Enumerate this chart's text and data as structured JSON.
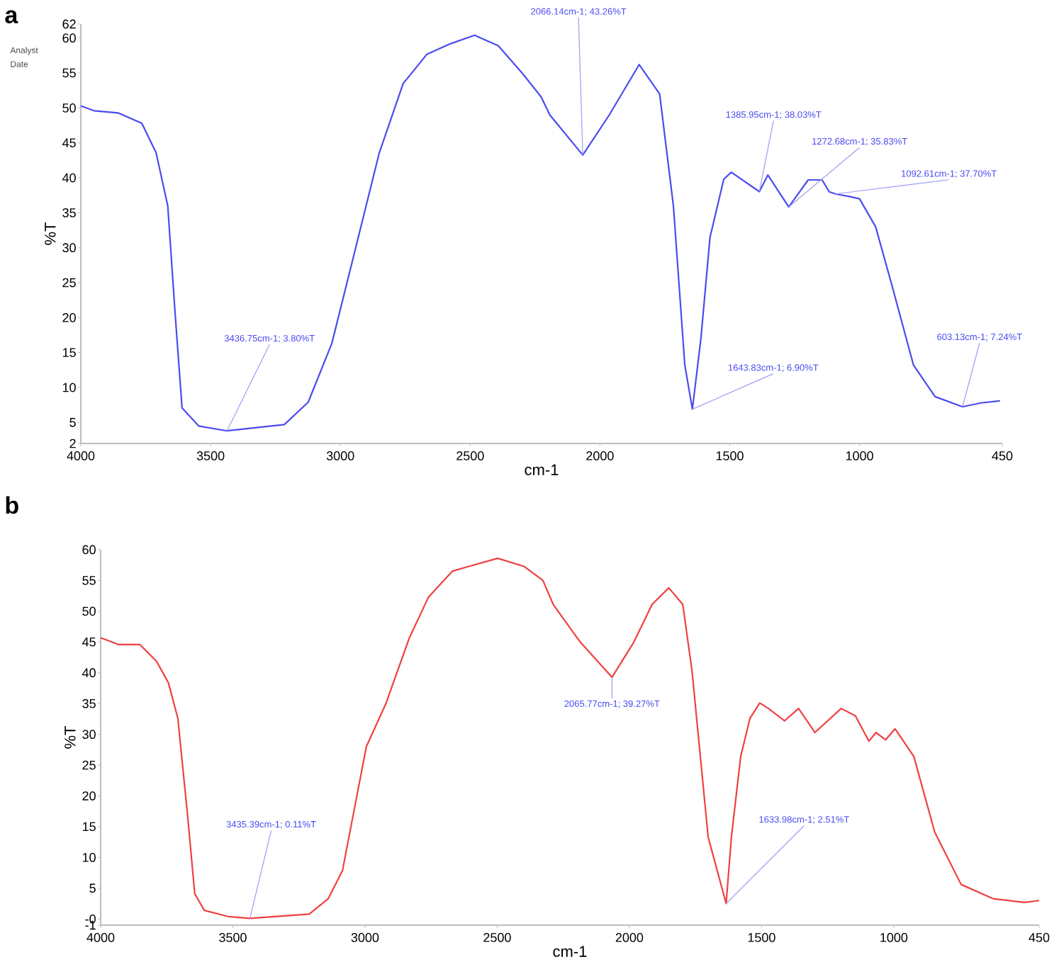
{
  "chart_data": [
    {
      "type": "line",
      "title": "a",
      "xlabel": "cm-1",
      "ylabel": "%T",
      "xlim": [
        4000,
        450
      ],
      "ylim": [
        2,
        62
      ],
      "xticks": [
        4000,
        3500,
        3000,
        2500,
        2000,
        1500,
        1000,
        450
      ],
      "yticks": [
        2,
        5,
        10,
        15,
        20,
        25,
        30,
        35,
        40,
        45,
        50,
        55,
        60,
        62
      ],
      "annotations": [
        "Analyst",
        "Date",
        {
          "text": "3436.75cm-1; 3.80%T",
          "x": 3436.75,
          "y": 3.8
        },
        {
          "text": "2066.14cm-1; 43.26%T",
          "x": 2066.14,
          "y": 43.26
        },
        {
          "text": "1385.95cm-1; 38.03%T",
          "x": 1385.95,
          "y": 38.03
        },
        {
          "text": "1272.68cm-1; 35.83%T",
          "x": 1272.68,
          "y": 35.83
        },
        {
          "text": "1092.61cm-1; 37.70%T",
          "x": 1092.61,
          "y": 37.7
        },
        {
          "text": "1643.83cm-1; 6.90%T",
          "x": 1643.83,
          "y": 6.9
        },
        {
          "text": "603.13cm-1; 7.24%T",
          "x": 603.13,
          "y": 7.24
        }
      ],
      "series": [
        {
          "color": "#4b4bef",
          "x": [
            4000,
            3949,
            3857,
            3765,
            3710,
            3665,
            3637,
            3610,
            3546,
            3436.75,
            3216,
            3124,
            3033,
            2941,
            2850,
            2758,
            2666,
            2575,
            2483,
            2392,
            2300,
            2227,
            2193,
            2066.14,
            1964,
            1849,
            1770,
            1717,
            1673,
            1643.83,
            1611,
            1576,
            1523,
            1494,
            1385.95,
            1353,
            1272.68,
            1198,
            1144,
            1117,
            1092.61,
            1036,
            1000,
            938,
            875,
            792,
            709,
            603.13,
            532,
            459
          ],
          "values": [
            50.3,
            49.6,
            49.3,
            47.8,
            43.6,
            36,
            20.8,
            7.1,
            4.5,
            3.8,
            4.7,
            7.9,
            16.3,
            30,
            43.6,
            53.5,
            57.7,
            59.2,
            60.4,
            58.9,
            55,
            51.6,
            49,
            43.26,
            49,
            56.2,
            52,
            36,
            13.2,
            6.9,
            17,
            31.5,
            39.8,
            40.8,
            38.03,
            40.4,
            35.83,
            39.7,
            39.7,
            38,
            37.7,
            37.3,
            37,
            33,
            24.6,
            13.2,
            8.7,
            7.24,
            7.8,
            8.1
          ]
        }
      ]
    },
    {
      "type": "line",
      "title": "b",
      "xlabel": "cm-1",
      "ylabel": "%T",
      "xlim": [
        4000,
        450
      ],
      "ylim": [
        -1,
        60
      ],
      "xticks": [
        4000,
        3500,
        3000,
        2500,
        2000,
        1500,
        1000,
        450
      ],
      "yticks": [
        -1,
        {
          "value": 0,
          "label": "-0"
        },
        5,
        10,
        15,
        20,
        25,
        30,
        35,
        40,
        45,
        50,
        55,
        60
      ],
      "annotations": [
        {
          "text": "3435.39cm-1; 0.11%T",
          "x": 3435.39,
          "y": 0.11
        },
        {
          "text": "2065.77cm-1; 39.27%T",
          "x": 2065.77,
          "y": 39.27
        },
        {
          "text": "1633.98cm-1; 2.51%T",
          "x": 1633.98,
          "y": 2.51
        }
      ],
      "series": [
        {
          "color": "#f04040",
          "x": [
            4000,
            3933,
            3852,
            3789,
            3744,
            3708,
            3672,
            3644,
            3608,
            3518,
            3435.39,
            3211,
            3139,
            3085,
            2995,
            2922,
            2832,
            2760,
            2670,
            2607,
            2498,
            2399,
            2327,
            2288,
            2186,
            2065.77,
            1983,
            1914,
            1851,
            1798,
            1763,
            1702,
            1633.98,
            1614,
            1579,
            1544,
            1507,
            1474,
            1413,
            1360,
            1298,
            1199,
            1145,
            1094,
            1067,
            1031,
            995,
            924,
            845,
            745,
            625,
            506,
            450
          ],
          "values": [
            45.7,
            44.6,
            44.6,
            41.9,
            38.4,
            32.6,
            17.2,
            4.1,
            1.4,
            0.4,
            0.11,
            0.8,
            3.3,
            7.9,
            28,
            34.9,
            45.7,
            52.3,
            56.5,
            57.3,
            58.6,
            57.3,
            55,
            51.1,
            45,
            39.27,
            45,
            51.1,
            53.8,
            51.1,
            40.3,
            13.3,
            2.51,
            13.3,
            26.4,
            32.6,
            35.1,
            34.2,
            32.2,
            34.2,
            30.3,
            34.2,
            33,
            28.9,
            30.3,
            29.1,
            30.9,
            26.4,
            14.1,
            5.6,
            3.3,
            2.7,
            3.0
          ]
        }
      ]
    }
  ]
}
